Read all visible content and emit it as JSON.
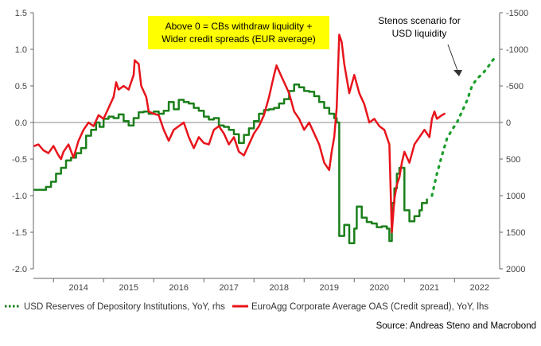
{
  "chart_data": {
    "type": "line",
    "title": "",
    "xlabel": "",
    "ylabel_left": "",
    "ylabel_right": "",
    "x_range": [
      2013.6,
      2022.9
    ],
    "x_ticks": [
      "2014",
      "2015",
      "2016",
      "2017",
      "2018",
      "2019",
      "2020",
      "2021",
      "2022"
    ],
    "ylim_left": [
      -2.0,
      1.5
    ],
    "left_ticks": [
      "1.5",
      "1.0",
      "0.5",
      "0.0",
      "-0.5",
      "-1.0",
      "-1.5",
      "-2.0"
    ],
    "ylim_right": [
      2000,
      -1500
    ],
    "right_ticks": [
      "-1500",
      "-1000",
      "-500",
      "0",
      "500",
      "1000",
      "1500",
      "2000"
    ],
    "zero_line": 0,
    "grid": false,
    "legend_position": "bottom",
    "annotation_box": {
      "lines": [
        "Above 0 = CBs withdraw liquidity +",
        "Wider credit spreads (EUR average)"
      ],
      "background": "#ffff00"
    },
    "annotation_scenario": {
      "lines": [
        "Stenos scenario for",
        "USD liquidity"
      ]
    },
    "source": "Source: Andreas Steno and Macrobond",
    "series": [
      {
        "name": "USD Reserves of Depository Institutions, YoY, rhs",
        "axis": "right",
        "color": "#1a7f1a",
        "style": "step",
        "points": [
          [
            2013.62,
            920
          ],
          [
            2013.75,
            920
          ],
          [
            2013.85,
            880
          ],
          [
            2013.95,
            810
          ],
          [
            2014.05,
            700
          ],
          [
            2014.15,
            620
          ],
          [
            2014.25,
            520
          ],
          [
            2014.35,
            480
          ],
          [
            2014.45,
            420
          ],
          [
            2014.55,
            350
          ],
          [
            2014.65,
            180
          ],
          [
            2014.75,
            100
          ],
          [
            2014.85,
            0
          ],
          [
            2014.92,
            60
          ],
          [
            2015.0,
            -50
          ],
          [
            2015.1,
            -80
          ],
          [
            2015.2,
            -60
          ],
          [
            2015.3,
            -110
          ],
          [
            2015.4,
            -20
          ],
          [
            2015.5,
            40
          ],
          [
            2015.6,
            -60
          ],
          [
            2015.7,
            -140
          ],
          [
            2015.8,
            -150
          ],
          [
            2015.9,
            -120
          ],
          [
            2016.0,
            -150
          ],
          [
            2016.1,
            -120
          ],
          [
            2016.2,
            -160
          ],
          [
            2016.3,
            -280
          ],
          [
            2016.4,
            -180
          ],
          [
            2016.5,
            -310
          ],
          [
            2016.6,
            -280
          ],
          [
            2016.7,
            -260
          ],
          [
            2016.8,
            -200
          ],
          [
            2016.9,
            -160
          ],
          [
            2017.0,
            -80
          ],
          [
            2017.1,
            -40
          ],
          [
            2017.2,
            -60
          ],
          [
            2017.3,
            40
          ],
          [
            2017.4,
            60
          ],
          [
            2017.5,
            100
          ],
          [
            2017.6,
            160
          ],
          [
            2017.7,
            280
          ],
          [
            2017.8,
            170
          ],
          [
            2017.9,
            80
          ],
          [
            2018.0,
            -20
          ],
          [
            2018.1,
            -120
          ],
          [
            2018.2,
            -170
          ],
          [
            2018.3,
            -180
          ],
          [
            2018.4,
            -200
          ],
          [
            2018.5,
            -260
          ],
          [
            2018.6,
            -320
          ],
          [
            2018.7,
            -430
          ],
          [
            2018.8,
            -520
          ],
          [
            2018.9,
            -480
          ],
          [
            2019.0,
            -430
          ],
          [
            2019.1,
            -420
          ],
          [
            2019.2,
            -360
          ],
          [
            2019.3,
            -280
          ],
          [
            2019.4,
            -200
          ],
          [
            2019.5,
            -120
          ],
          [
            2019.6,
            -60
          ],
          [
            2019.65,
            0
          ],
          [
            2019.7,
            1550
          ],
          [
            2019.8,
            1400
          ],
          [
            2019.9,
            1650
          ],
          [
            2020.0,
            1450
          ],
          [
            2020.05,
            1150
          ],
          [
            2020.15,
            1300
          ],
          [
            2020.25,
            1360
          ],
          [
            2020.35,
            1380
          ],
          [
            2020.45,
            1430
          ],
          [
            2020.55,
            1420
          ],
          [
            2020.65,
            1450
          ],
          [
            2020.7,
            1620
          ],
          [
            2020.75,
            1100
          ],
          [
            2020.8,
            900
          ],
          [
            2020.85,
            700
          ],
          [
            2020.9,
            620
          ],
          [
            2021.0,
            1200
          ],
          [
            2021.1,
            1350
          ],
          [
            2021.2,
            1280
          ],
          [
            2021.3,
            1200
          ],
          [
            2021.35,
            1100
          ],
          [
            2021.45,
            1050
          ]
        ]
      },
      {
        "name": "EuroAgg Corporate Average OAS (Credit spread), YoY, lhs",
        "axis": "left",
        "color": "#e8141b",
        "style": "line",
        "points": [
          [
            2013.62,
            -0.32
          ],
          [
            2013.7,
            -0.3
          ],
          [
            2013.8,
            -0.38
          ],
          [
            2013.9,
            -0.42
          ],
          [
            2014.0,
            -0.32
          ],
          [
            2014.1,
            -0.45
          ],
          [
            2014.15,
            -0.5
          ],
          [
            2014.2,
            -0.4
          ],
          [
            2014.3,
            -0.3
          ],
          [
            2014.4,
            -0.48
          ],
          [
            2014.5,
            -0.25
          ],
          [
            2014.6,
            -0.1
          ],
          [
            2014.7,
            0.0
          ],
          [
            2014.8,
            -0.05
          ],
          [
            2014.9,
            0.1
          ],
          [
            2015.0,
            0.05
          ],
          [
            2015.1,
            0.2
          ],
          [
            2015.2,
            0.35
          ],
          [
            2015.25,
            0.55
          ],
          [
            2015.3,
            0.45
          ],
          [
            2015.4,
            0.5
          ],
          [
            2015.5,
            0.45
          ],
          [
            2015.6,
            0.65
          ],
          [
            2015.62,
            0.85
          ],
          [
            2015.7,
            0.8
          ],
          [
            2015.75,
            0.5
          ],
          [
            2015.85,
            0.35
          ],
          [
            2015.9,
            0.15
          ],
          [
            2016.0,
            0.12
          ],
          [
            2016.1,
            0.1
          ],
          [
            2016.2,
            -0.1
          ],
          [
            2016.3,
            -0.25
          ],
          [
            2016.4,
            -0.1
          ],
          [
            2016.5,
            -0.05
          ],
          [
            2016.6,
            0.0
          ],
          [
            2016.7,
            -0.2
          ],
          [
            2016.8,
            -0.35
          ],
          [
            2016.9,
            -0.2
          ],
          [
            2017.0,
            -0.28
          ],
          [
            2017.1,
            -0.3
          ],
          [
            2017.2,
            -0.1
          ],
          [
            2017.3,
            -0.05
          ],
          [
            2017.4,
            -0.15
          ],
          [
            2017.5,
            -0.3
          ],
          [
            2017.6,
            -0.2
          ],
          [
            2017.7,
            -0.4
          ],
          [
            2017.8,
            -0.45
          ],
          [
            2017.9,
            -0.3
          ],
          [
            2018.0,
            -0.15
          ],
          [
            2018.1,
            -0.05
          ],
          [
            2018.2,
            0.1
          ],
          [
            2018.3,
            0.35
          ],
          [
            2018.35,
            0.5
          ],
          [
            2018.4,
            0.65
          ],
          [
            2018.45,
            0.78
          ],
          [
            2018.5,
            0.7
          ],
          [
            2018.6,
            0.55
          ],
          [
            2018.7,
            0.4
          ],
          [
            2018.8,
            0.15
          ],
          [
            2018.9,
            0.05
          ],
          [
            2019.0,
            -0.1
          ],
          [
            2019.1,
            0.0
          ],
          [
            2019.2,
            -0.15
          ],
          [
            2019.3,
            -0.3
          ],
          [
            2019.4,
            -0.55
          ],
          [
            2019.5,
            -0.65
          ],
          [
            2019.55,
            -0.4
          ],
          [
            2019.6,
            -0.2
          ],
          [
            2019.65,
            0.2
          ],
          [
            2019.7,
            1.2
          ],
          [
            2019.75,
            1.1
          ],
          [
            2019.8,
            0.8
          ],
          [
            2019.9,
            0.4
          ],
          [
            2020.0,
            0.65
          ],
          [
            2020.1,
            0.4
          ],
          [
            2020.2,
            0.25
          ],
          [
            2020.3,
            0.0
          ],
          [
            2020.4,
            0.05
          ],
          [
            2020.5,
            -0.05
          ],
          [
            2020.6,
            -0.1
          ],
          [
            2020.7,
            -0.3
          ],
          [
            2020.75,
            -1.5
          ],
          [
            2020.8,
            -1.05
          ],
          [
            2020.85,
            -0.85
          ],
          [
            2020.9,
            -0.75
          ],
          [
            2020.95,
            -0.55
          ],
          [
            2021.0,
            -0.4
          ],
          [
            2021.1,
            -0.55
          ],
          [
            2021.2,
            -0.3
          ],
          [
            2021.3,
            -0.2
          ],
          [
            2021.4,
            -0.1
          ],
          [
            2021.5,
            -0.2
          ],
          [
            2021.55,
            0.05
          ],
          [
            2021.6,
            0.15
          ],
          [
            2021.65,
            0.05
          ],
          [
            2021.75,
            0.1
          ],
          [
            2021.8,
            0.12
          ]
        ]
      },
      {
        "name": "Stenos scenario for USD liquidity",
        "axis": "right",
        "color": "#1a9e2a",
        "style": "dotted",
        "points": [
          [
            2021.55,
            1000
          ],
          [
            2021.65,
            700
          ],
          [
            2021.75,
            450
          ],
          [
            2021.85,
            220
          ],
          [
            2021.95,
            100
          ],
          [
            2022.05,
            0
          ],
          [
            2022.15,
            -150
          ],
          [
            2022.25,
            -300
          ],
          [
            2022.35,
            -500
          ],
          [
            2022.45,
            -600
          ],
          [
            2022.55,
            -660
          ],
          [
            2022.65,
            -740
          ],
          [
            2022.75,
            -840
          ],
          [
            2022.85,
            -920
          ]
        ]
      }
    ]
  }
}
